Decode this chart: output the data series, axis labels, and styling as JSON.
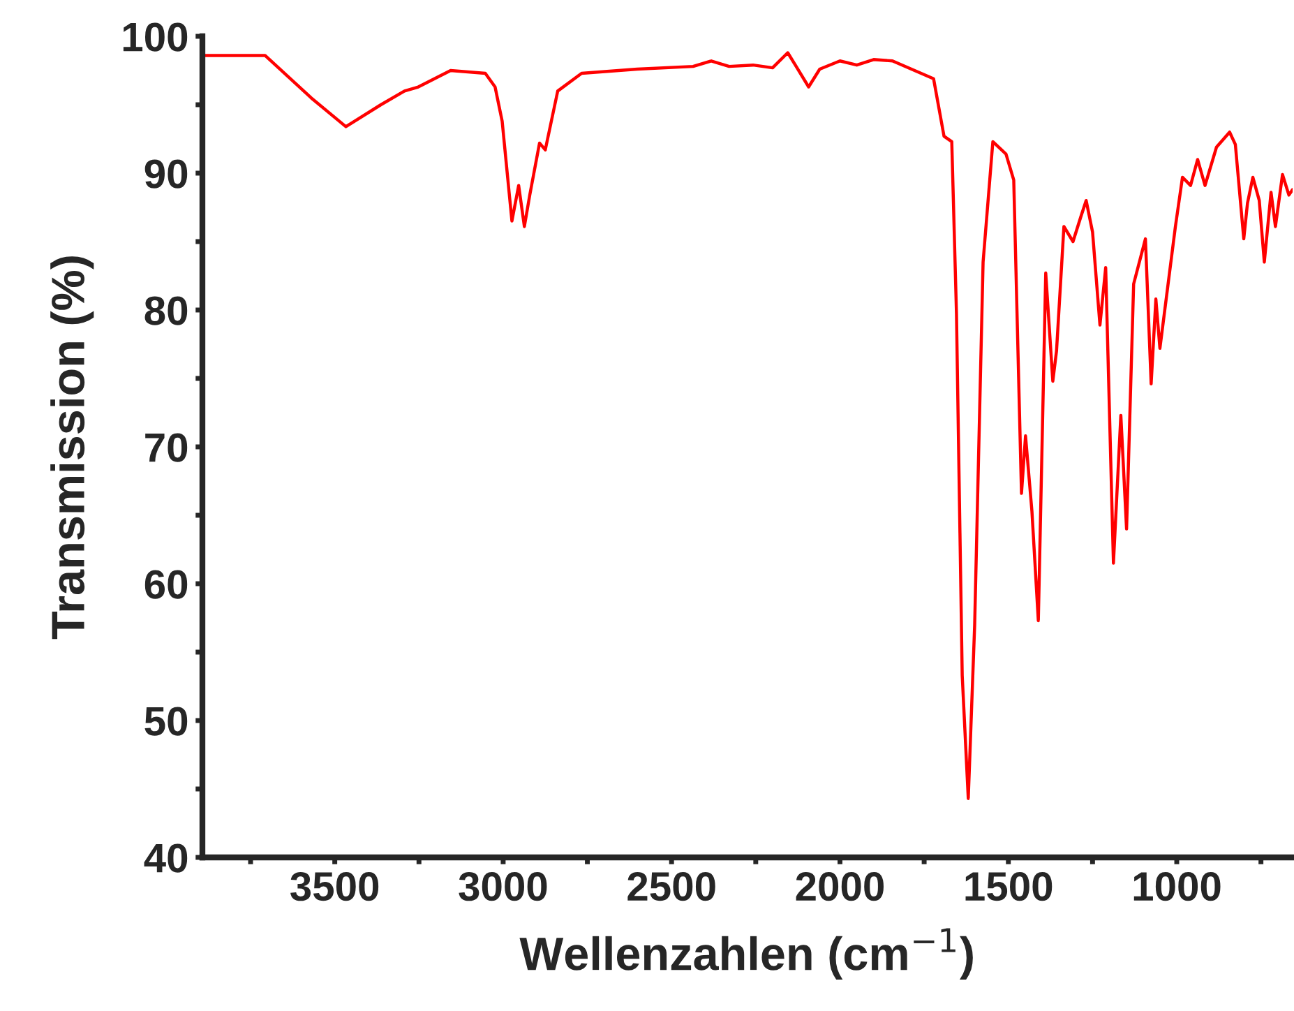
{
  "chart_data": {
    "type": "line",
    "xlabel": "Wellenzahlen (cm$^{−1}$)",
    "ylabel": "Transmission (%)",
    "xlim": [
      3893,
      656
    ],
    "ylim": [
      40,
      100
    ],
    "xticks": [
      {
        "value": 3750,
        "label": null
      },
      3500,
      {
        "value": 3250,
        "label": null
      },
      3000,
      {
        "value": 2750,
        "label": null
      },
      2500,
      {
        "value": 2250,
        "label": null
      },
      2000,
      {
        "value": 1750,
        "label": null
      },
      1500,
      {
        "value": 1250,
        "label": null
      },
      1000,
      {
        "value": 750,
        "label": null
      }
    ],
    "yticks": [
      40,
      {
        "value": 45,
        "label": null
      },
      50,
      {
        "value": 55,
        "label": null
      },
      60,
      {
        "value": 65,
        "label": null
      },
      70,
      {
        "value": 75,
        "label": null
      },
      80,
      {
        "value": 85,
        "label": null
      },
      90,
      {
        "value": 95,
        "label": null
      },
      100
    ],
    "grid": false,
    "legend": false,
    "marker": "none",
    "line_style": "solid",
    "series": [
      {
        "color": "#ff0000",
        "x": [
          3893,
          3707,
          3570,
          3467,
          3363,
          3293,
          3252,
          3156,
          3053,
          3024,
          3003,
          2974,
          2954,
          2937,
          2921,
          2892,
          2875,
          2838,
          2767,
          2602,
          2436,
          2382,
          2329,
          2258,
          2200,
          2155,
          2130,
          2093,
          2060,
          2000,
          1950,
          1900,
          1844,
          1722,
          1691,
          1668,
          1654,
          1637,
          1619,
          1600,
          1575,
          1546,
          1507,
          1484,
          1461,
          1449,
          1430,
          1411,
          1389,
          1368,
          1357,
          1335,
          1308,
          1285,
          1269,
          1250,
          1228,
          1211,
          1188,
          1166,
          1149,
          1128,
          1093,
          1076,
          1062,
          1050,
          1004,
          983,
          959,
          938,
          916,
          882,
          843,
          826,
          801,
          790,
          774,
          755,
          740,
          720,
          707,
          686,
          667,
          656
        ],
        "values": [
          98.6,
          98.6,
          95.5,
          93.4,
          95.0,
          96.0,
          96.3,
          97.5,
          97.3,
          96.3,
          93.8,
          86.5,
          89.1,
          86.1,
          88.4,
          92.2,
          91.7,
          96.0,
          97.3,
          97.6,
          97.8,
          98.2,
          97.8,
          97.9,
          97.7,
          98.8,
          97.8,
          96.3,
          97.6,
          98.2,
          97.9,
          98.3,
          98.2,
          96.9,
          92.7,
          92.3,
          79.7,
          53.3,
          44.3,
          57.0,
          83.5,
          92.3,
          91.4,
          89.5,
          66.6,
          70.8,
          65.3,
          57.3,
          82.7,
          74.8,
          77.0,
          86.1,
          85.0,
          86.8,
          88.0,
          85.7,
          78.9,
          83.1,
          61.5,
          72.3,
          64.0,
          81.9,
          85.2,
          74.6,
          80.8,
          77.2,
          86.1,
          89.7,
          89.1,
          91.0,
          89.1,
          91.9,
          93.0,
          92.1,
          85.2,
          87.8,
          89.7,
          88.0,
          83.5,
          88.6,
          86.1,
          89.9,
          88.4,
          88.8
        ]
      }
    ]
  }
}
